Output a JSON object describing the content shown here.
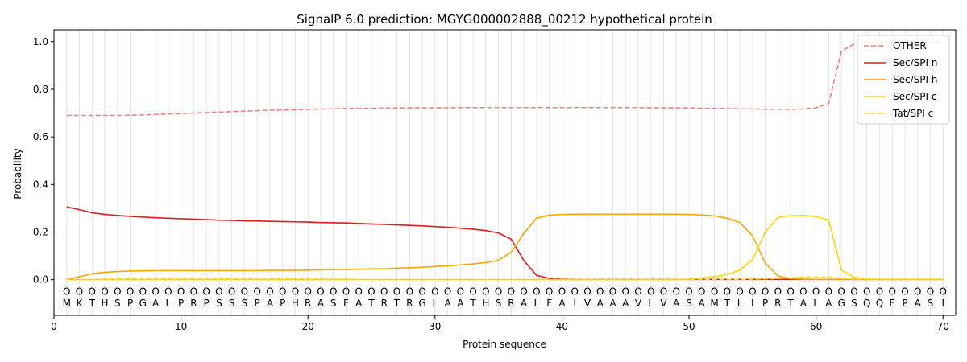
{
  "chart_data": {
    "type": "line",
    "title": "SignalP 6.0 prediction: MGYG000002888_00212 hypothetical protein",
    "xlabel": "Protein sequence",
    "ylabel": "Probability",
    "xlim": [
      0,
      71
    ],
    "ylim": [
      -0.15,
      1.05
    ],
    "xticks": [
      0,
      10,
      20,
      30,
      40,
      50,
      60,
      70
    ],
    "yticks": [
      0.0,
      0.2,
      0.4,
      0.6,
      0.8,
      1.0
    ],
    "ytick_labels": [
      "0.0",
      "0.2",
      "0.4",
      "0.6",
      "0.8",
      "1.0"
    ],
    "grid": "vertical lines at each residue",
    "legend_position": "top-right",
    "sequence": [
      "M",
      "K",
      "T",
      "H",
      "S",
      "P",
      "G",
      "A",
      "L",
      "P",
      "R",
      "P",
      "S",
      "S",
      "S",
      "P",
      "A",
      "P",
      "H",
      "R",
      "A",
      "S",
      "F",
      "A",
      "T",
      "R",
      "T",
      "R",
      "G",
      "L",
      "A",
      "A",
      "T",
      "H",
      "S",
      "R",
      "A",
      "L",
      "F",
      "A",
      "I",
      "V",
      "A",
      "A",
      "A",
      "V",
      "L",
      "V",
      "A",
      "S",
      "A",
      "M",
      "T",
      "L",
      "I",
      "P",
      "R",
      "T",
      "A",
      "L",
      "A",
      "G",
      "S",
      "Q",
      "Q",
      "E",
      "P",
      "A",
      "S",
      "I"
    ],
    "region_marker": "O",
    "series": [
      {
        "name": "OTHER",
        "color": "#f08080",
        "dashed": true,
        "values": [
          0.69,
          0.69,
          0.69,
          0.69,
          0.69,
          0.691,
          0.692,
          0.694,
          0.696,
          0.698,
          0.7,
          0.702,
          0.704,
          0.706,
          0.708,
          0.71,
          0.712,
          0.713,
          0.714,
          0.716,
          0.717,
          0.718,
          0.719,
          0.72,
          0.72,
          0.721,
          0.721,
          0.722,
          0.722,
          0.722,
          0.722,
          0.723,
          0.723,
          0.723,
          0.723,
          0.723,
          0.723,
          0.723,
          0.723,
          0.723,
          0.723,
          0.723,
          0.723,
          0.723,
          0.723,
          0.723,
          0.722,
          0.722,
          0.722,
          0.721,
          0.72,
          0.72,
          0.719,
          0.718,
          0.717,
          0.716,
          0.716,
          0.716,
          0.717,
          0.722,
          0.74,
          0.96,
          0.99,
          0.995,
          0.997,
          0.998,
          0.998,
          0.998,
          0.998,
          0.998
        ]
      },
      {
        "name": "Sec/SPI n",
        "color": "#e31a1c",
        "dashed": false,
        "values": [
          0.306,
          0.294,
          0.281,
          0.274,
          0.27,
          0.266,
          0.263,
          0.26,
          0.258,
          0.256,
          0.254,
          0.252,
          0.25,
          0.249,
          0.247,
          0.246,
          0.245,
          0.244,
          0.243,
          0.242,
          0.24,
          0.239,
          0.238,
          0.236,
          0.234,
          0.232,
          0.23,
          0.228,
          0.226,
          0.223,
          0.22,
          0.216,
          0.212,
          0.206,
          0.196,
          0.17,
          0.08,
          0.018,
          0.005,
          0.002,
          0.001,
          0.001,
          0.001,
          0.001,
          0.001,
          0.001,
          0.001,
          0.001,
          0.001,
          0.001,
          0.001,
          0.001,
          0.001,
          0.001,
          0.001,
          0.001,
          0.001,
          0.001,
          0.001,
          0.001,
          0.001,
          0.001,
          0.001,
          0.001,
          0.001,
          0.001,
          0.001,
          0.001,
          0.001,
          0.001
        ]
      },
      {
        "name": "Sec/SPI h",
        "color": "#ffa500",
        "dashed": false,
        "values": [
          0.0,
          0.012,
          0.025,
          0.031,
          0.034,
          0.036,
          0.037,
          0.038,
          0.038,
          0.038,
          0.038,
          0.038,
          0.038,
          0.038,
          0.038,
          0.038,
          0.039,
          0.039,
          0.039,
          0.04,
          0.041,
          0.042,
          0.043,
          0.044,
          0.045,
          0.046,
          0.048,
          0.05,
          0.052,
          0.055,
          0.058,
          0.062,
          0.066,
          0.072,
          0.082,
          0.115,
          0.195,
          0.258,
          0.271,
          0.274,
          0.275,
          0.275,
          0.275,
          0.275,
          0.275,
          0.275,
          0.275,
          0.275,
          0.275,
          0.274,
          0.272,
          0.268,
          0.258,
          0.24,
          0.185,
          0.07,
          0.015,
          0.004,
          0.002,
          0.001,
          0.001,
          0.001,
          0.001,
          0.001,
          0.001,
          0.001,
          0.001,
          0.001,
          0.001,
          0.001
        ]
      },
      {
        "name": "Sec/SPI c",
        "color": "#ffd700",
        "dashed": false,
        "values": [
          0.0,
          0.0,
          0.0,
          0.0,
          0.0,
          0.0,
          0.0,
          0.0,
          0.0,
          0.0,
          0.0,
          0.0,
          0.0,
          0.0,
          0.0,
          0.0,
          0.0,
          0.0,
          0.0,
          0.0,
          0.0,
          0.0,
          0.0,
          0.0,
          0.0,
          0.0,
          0.0,
          0.0,
          0.0,
          0.0,
          0.0,
          0.0,
          0.0,
          0.0,
          0.0,
          0.0,
          0.0,
          0.0,
          0.0,
          0.0,
          0.0,
          0.0,
          0.0,
          0.0,
          0.0,
          0.0,
          0.0,
          0.0,
          0.0,
          0.002,
          0.006,
          0.012,
          0.022,
          0.04,
          0.085,
          0.2,
          0.262,
          0.269,
          0.27,
          0.265,
          0.25,
          0.04,
          0.01,
          0.003,
          0.002,
          0.002,
          0.002,
          0.002,
          0.002,
          0.002
        ]
      },
      {
        "name": "Tat/SPI c",
        "color": "#ffd700",
        "dashed": true,
        "values": [
          0.0,
          0.0,
          0.001,
          0.002,
          0.003,
          0.003,
          0.003,
          0.003,
          0.003,
          0.003,
          0.003,
          0.003,
          0.003,
          0.003,
          0.003,
          0.003,
          0.003,
          0.003,
          0.003,
          0.003,
          0.002,
          0.002,
          0.002,
          0.001,
          0.001,
          0.001,
          0.001,
          0.001,
          0.001,
          0.001,
          0.001,
          0.001,
          0.001,
          0.001,
          0.001,
          0.001,
          0.001,
          0.001,
          0.001,
          0.001,
          0.001,
          0.001,
          0.001,
          0.001,
          0.001,
          0.001,
          0.001,
          0.001,
          0.001,
          0.001,
          0.001,
          0.001,
          0.001,
          0.001,
          0.002,
          0.003,
          0.005,
          0.008,
          0.01,
          0.011,
          0.011,
          0.006,
          0.002,
          0.001,
          0.001,
          0.001,
          0.001,
          0.001,
          0.001,
          0.001
        ]
      }
    ]
  }
}
